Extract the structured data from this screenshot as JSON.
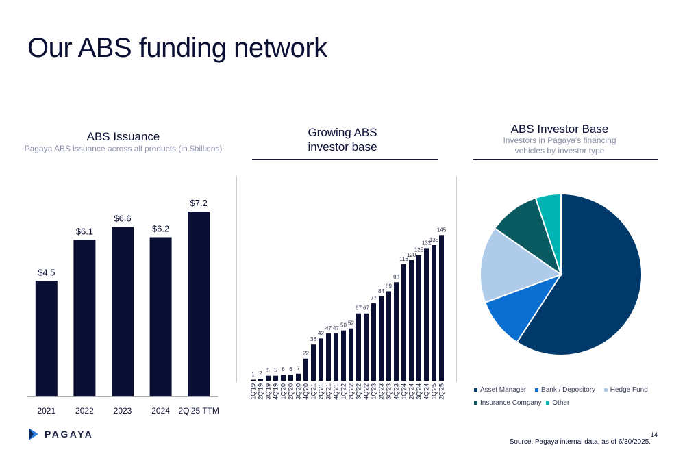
{
  "page": {
    "title": "Our ABS funding network",
    "brand": "PAGAYA",
    "page_number": "14",
    "source": "Source: Pagaya internal data, as of 6/30/2025."
  },
  "colors": {
    "navy": "#0b0f33",
    "asset_manager": "#003a6b",
    "bank_depository": "#0a6fd0",
    "hedge_fund": "#aecbea",
    "insurance_company": "#0a5a62",
    "other": "#00b4b4"
  },
  "chart_data": [
    {
      "id": "issuance",
      "type": "bar",
      "title": "ABS Issuance",
      "subtitle": "Pagaya ABS issuance across all products (in $billions)",
      "categories": [
        "2021",
        "2022",
        "2023",
        "2024",
        "2Q'25 TTM"
      ],
      "values": [
        4.5,
        6.1,
        6.6,
        6.2,
        7.2
      ],
      "value_labels": [
        "$4.5",
        "$6.1",
        "$6.6",
        "$6.2",
        "$7.2"
      ],
      "ylim": [
        0,
        8
      ],
      "grid": false
    },
    {
      "id": "investors",
      "type": "bar",
      "title": "Growing ABS investor base",
      "categories": [
        "1Q'19",
        "2Q'19",
        "3Q'19",
        "4Q'19",
        "1Q'20",
        "2Q'20",
        "3Q'20",
        "4Q'20",
        "1Q'21",
        "2Q'21",
        "3Q'21",
        "4Q'21",
        "1Q'22",
        "2Q'22",
        "3Q'22",
        "4Q'22",
        "1Q'23",
        "2Q'23",
        "3Q'23",
        "4Q'23",
        "1Q'24",
        "2Q'24",
        "3Q'24",
        "4Q'24",
        "1Q'25",
        "2Q'25"
      ],
      "values": [
        1,
        2,
        5,
        5,
        6,
        6,
        7,
        22,
        36,
        42,
        47,
        47,
        50,
        52,
        67,
        67,
        77,
        84,
        89,
        98,
        116,
        120,
        125,
        132,
        135,
        145
      ],
      "ylim": [
        0,
        150
      ],
      "grid": false
    },
    {
      "id": "investor_base",
      "type": "pie",
      "title": "ABS Investor Base",
      "subtitle": "Investors in Pagaya's financing vehicles by investor type",
      "labels": [
        "Asset Manager",
        "Bank / Depository",
        "Hedge Fund",
        "Insurance Company",
        "Other"
      ],
      "values": [
        58,
        10,
        15,
        10,
        5
      ],
      "legend_position": "bottom"
    }
  ]
}
